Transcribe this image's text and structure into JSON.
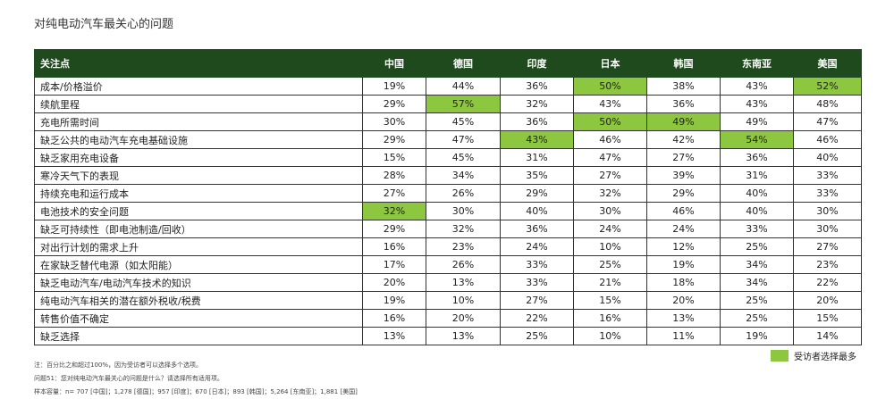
{
  "title": "对纯电动汽车最关心的问题",
  "header_color": "#1f4a1d",
  "highlight_color": "#8dc63f",
  "table": {
    "header": [
      "关注点",
      "中国",
      "德国",
      "印度",
      "日本",
      "韩国",
      "东南亚",
      "美国"
    ],
    "rows": [
      {
        "label": "成本/价格溢价",
        "values": [
          "19%",
          "44%",
          "36%",
          "50%",
          "38%",
          "43%",
          "52%"
        ],
        "highlight": [
          false,
          false,
          false,
          true,
          false,
          false,
          true
        ]
      },
      {
        "label": "续航里程",
        "values": [
          "29%",
          "57%",
          "32%",
          "43%",
          "36%",
          "43%",
          "48%"
        ],
        "highlight": [
          false,
          true,
          false,
          false,
          false,
          false,
          false
        ]
      },
      {
        "label": "充电所需时间",
        "values": [
          "30%",
          "45%",
          "36%",
          "50%",
          "49%",
          "49%",
          "47%"
        ],
        "highlight": [
          false,
          false,
          false,
          true,
          true,
          false,
          false
        ]
      },
      {
        "label": "缺乏公共的电动汽车充电基础设施",
        "values": [
          "29%",
          "47%",
          "43%",
          "46%",
          "42%",
          "54%",
          "46%"
        ],
        "highlight": [
          false,
          false,
          true,
          false,
          false,
          true,
          false
        ]
      },
      {
        "label": "缺乏家用充电设备",
        "values": [
          "15%",
          "45%",
          "31%",
          "47%",
          "27%",
          "36%",
          "40%"
        ],
        "highlight": [
          false,
          false,
          false,
          false,
          false,
          false,
          false
        ]
      },
      {
        "label": "寒冷天气下的表现",
        "values": [
          "28%",
          "34%",
          "35%",
          "27%",
          "39%",
          "31%",
          "33%"
        ],
        "highlight": [
          false,
          false,
          false,
          false,
          false,
          false,
          false
        ]
      },
      {
        "label": "持续充电和运行成本",
        "values": [
          "27%",
          "26%",
          "29%",
          "32%",
          "29%",
          "40%",
          "33%"
        ],
        "highlight": [
          false,
          false,
          false,
          false,
          false,
          false,
          false
        ]
      },
      {
        "label": "电池技术的安全问题",
        "values": [
          "32%",
          "30%",
          "40%",
          "30%",
          "46%",
          "40%",
          "30%"
        ],
        "highlight": [
          true,
          false,
          false,
          false,
          false,
          false,
          false
        ]
      },
      {
        "label": "缺乏可持续性（即电池制造/回收）",
        "values": [
          "29%",
          "32%",
          "36%",
          "24%",
          "24%",
          "33%",
          "30%"
        ],
        "highlight": [
          false,
          false,
          false,
          false,
          false,
          false,
          false
        ]
      },
      {
        "label": "对出行计划的需求上升",
        "values": [
          "16%",
          "23%",
          "24%",
          "10%",
          "12%",
          "25%",
          "27%"
        ],
        "highlight": [
          false,
          false,
          false,
          false,
          false,
          false,
          false
        ]
      },
      {
        "label": "在家缺乏替代电源（如太阳能）",
        "values": [
          "17%",
          "26%",
          "33%",
          "25%",
          "19%",
          "34%",
          "23%"
        ],
        "highlight": [
          false,
          false,
          false,
          false,
          false,
          false,
          false
        ]
      },
      {
        "label": "缺乏电动汽车/电动汽车技术的知识",
        "values": [
          "20%",
          "13%",
          "33%",
          "21%",
          "18%",
          "34%",
          "22%"
        ],
        "highlight": [
          false,
          false,
          false,
          false,
          false,
          false,
          false
        ]
      },
      {
        "label": "纯电动汽车相关的潜在额外税收/税费",
        "values": [
          "19%",
          "10%",
          "27%",
          "15%",
          "20%",
          "25%",
          "20%"
        ],
        "highlight": [
          false,
          false,
          false,
          false,
          false,
          false,
          false
        ]
      },
      {
        "label": "转售价值不确定",
        "values": [
          "16%",
          "20%",
          "22%",
          "16%",
          "13%",
          "25%",
          "15%"
        ],
        "highlight": [
          false,
          false,
          false,
          false,
          false,
          false,
          false
        ]
      },
      {
        "label": "缺乏选择",
        "values": [
          "13%",
          "13%",
          "25%",
          "10%",
          "11%",
          "19%",
          "14%"
        ],
        "highlight": [
          false,
          false,
          false,
          false,
          false,
          false,
          false
        ]
      }
    ]
  },
  "legend": "受访者选择最多",
  "notes": [
    "注：百分比之和超过100%，因为受访者可以选择多个选项。",
    "问题51：您对纯电动汽车最关心的问题是什么？请选择所有适用项。",
    "样本容量：n= 707 [中国]；1,278 [德国]；957 [印度]；670 [日本]；893 [韩国]；5,264 [东南亚]；1,881 [美国]"
  ]
}
